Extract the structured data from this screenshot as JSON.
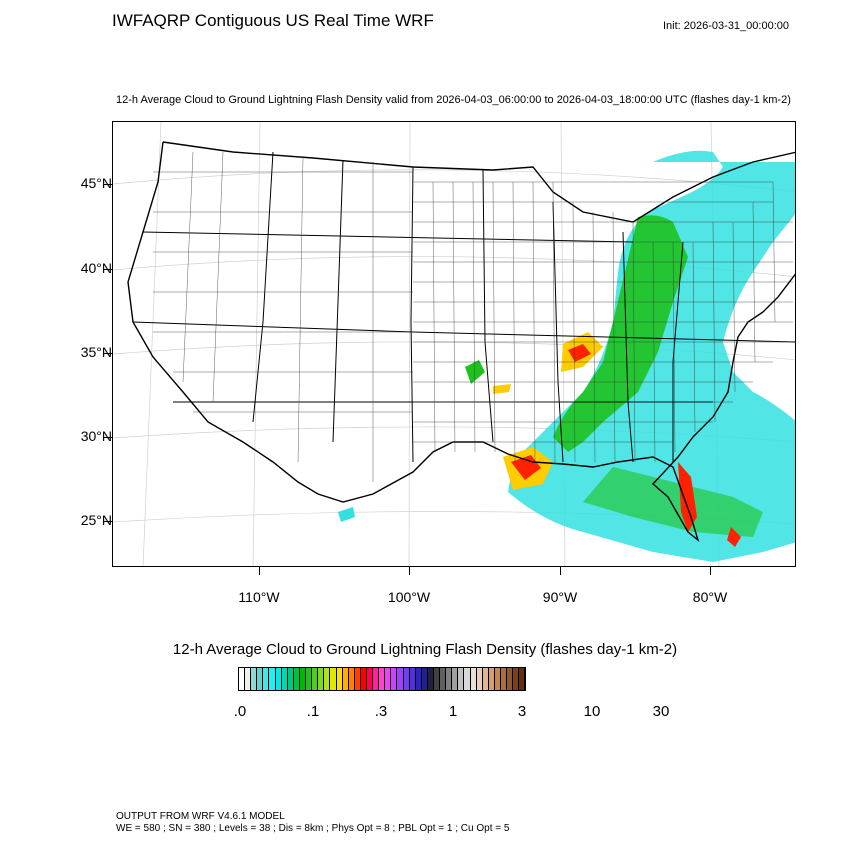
{
  "header": {
    "title": "IWFAQRP Contiguous US Real Time WRF",
    "init": "Init: 2026-03-31_00:00:00",
    "subtitle": "12-h Average Cloud to Ground Lightning Flash Density valid from 2026-04-03_06:00:00 to 2026-04-03_18:00:00 UTC   (flashes day-1 km-2)"
  },
  "map": {
    "lat_labels": [
      "45°N",
      "40°N",
      "35°N",
      "30°N",
      "25°N"
    ],
    "lon_labels": [
      "110°W",
      "100°W",
      "90°W",
      "80°W"
    ],
    "colors": {
      "land": "#ffffff",
      "boundaries": "#000000",
      "graticule": "#cccccc",
      "low": "#33e0e0",
      "mid": "#1ec21e",
      "high": "#ffcc00",
      "peak": "#ff2200"
    }
  },
  "colorbar": {
    "title": "12-h Average Cloud to Ground Lightning Flash Density  (flashes day-1 km-2)",
    "labels": [
      ".0",
      ".1",
      ".3",
      "1",
      "3",
      "10",
      "30"
    ],
    "colors": [
      "#ffffff",
      "#f0f0f0",
      "#8fd8d8",
      "#66d0d0",
      "#44e6e6",
      "#22f0f0",
      "#00e8e8",
      "#00d8b0",
      "#00c880",
      "#00c040",
      "#00b800",
      "#20c020",
      "#50cc20",
      "#80d820",
      "#b0e020",
      "#e0e800",
      "#ffe000",
      "#ffb000",
      "#ff8000",
      "#ff4000",
      "#ff0000",
      "#ff0050",
      "#ff20a0",
      "#ff40d0",
      "#f040f0",
      "#d040ff",
      "#a040ff",
      "#7040f0",
      "#5030e0",
      "#3020c0",
      "#202090",
      "#202040",
      "#404040",
      "#606060",
      "#808080",
      "#a0a0a0",
      "#c0c0c0",
      "#d8d8d8",
      "#e8e0d8",
      "#e8d0b8",
      "#e0b890",
      "#d0a070",
      "#c08850",
      "#a87040",
      "#905830",
      "#784020",
      "#603010"
    ]
  },
  "footer": {
    "line1": "OUTPUT FROM WRF V4.6.1 MODEL",
    "line2": "WE = 580 ; SN = 380 ; Levels = 38 ; Dis = 8km ; Phys Opt = 8 ; PBL Opt = 1 ; Cu Opt = 5"
  }
}
